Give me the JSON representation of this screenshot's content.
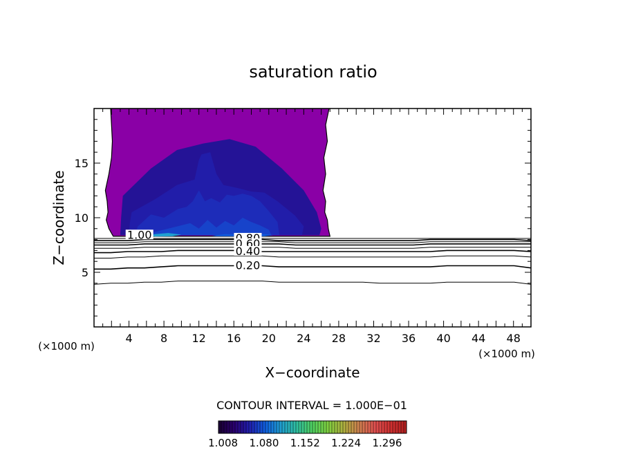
{
  "chart_data": {
    "type": "contour",
    "title": "saturation ratio",
    "xlabel": "X−coordinate",
    "ylabel": "Z−coordinate",
    "x_unit_label": "(×1000 m)",
    "z_unit_label": "(×1000 m)",
    "xlim": [
      0,
      50
    ],
    "ylim": [
      0,
      20
    ],
    "x_ticks": [
      4,
      8,
      12,
      16,
      20,
      24,
      28,
      32,
      36,
      40,
      44,
      48
    ],
    "y_ticks": [
      5,
      10,
      15
    ],
    "contour_interval_text": "CONTOUR INTERVAL = 1.000E−01",
    "contour_lines": [
      {
        "level": 0.1,
        "z": [
          3.9,
          4.0,
          4.0,
          4.1,
          4.1,
          4.2,
          4.2,
          4.2,
          4.2,
          4.2,
          4.2,
          4.1,
          4.1,
          4.1,
          4.1,
          4.1,
          4.1,
          4.0,
          4.0,
          4.0,
          4.0,
          4.1,
          4.1,
          4.1,
          4.1,
          4.1,
          3.9
        ]
      },
      {
        "level": 0.2,
        "z": [
          5.3,
          5.3,
          5.4,
          5.4,
          5.5,
          5.6,
          5.6,
          5.6,
          5.6,
          5.6,
          5.6,
          5.5,
          5.5,
          5.5,
          5.5,
          5.5,
          5.5,
          5.5,
          5.5,
          5.5,
          5.5,
          5.6,
          5.6,
          5.6,
          5.6,
          5.6,
          5.4
        ]
      },
      {
        "level": 0.3,
        "z": [
          6.3,
          6.3,
          6.4,
          6.4,
          6.5,
          6.5,
          6.5,
          6.5,
          6.5,
          6.5,
          6.5,
          6.4,
          6.4,
          6.4,
          6.4,
          6.4,
          6.4,
          6.4,
          6.4,
          6.4,
          6.4,
          6.5,
          6.5,
          6.5,
          6.5,
          6.5,
          6.4
        ]
      },
      {
        "level": 0.4,
        "z": [
          6.8,
          6.8,
          6.9,
          6.9,
          6.9,
          7.0,
          7.0,
          7.0,
          7.0,
          7.0,
          6.9,
          6.9,
          6.9,
          6.9,
          6.9,
          6.9,
          6.9,
          6.9,
          6.9,
          6.9,
          6.9,
          7.0,
          7.0,
          7.0,
          7.0,
          7.0,
          6.9
        ]
      },
      {
        "level": 0.5,
        "z": [
          7.2,
          7.2,
          7.2,
          7.3,
          7.3,
          7.3,
          7.3,
          7.3,
          7.3,
          7.3,
          7.3,
          7.3,
          7.2,
          7.2,
          7.2,
          7.2,
          7.2,
          7.2,
          7.2,
          7.2,
          7.3,
          7.3,
          7.3,
          7.3,
          7.3,
          7.3,
          7.3
        ]
      },
      {
        "level": 0.6,
        "z": [
          7.5,
          7.5,
          7.5,
          7.6,
          7.6,
          7.6,
          7.6,
          7.6,
          7.6,
          7.6,
          7.6,
          7.6,
          7.5,
          7.5,
          7.5,
          7.5,
          7.5,
          7.5,
          7.5,
          7.5,
          7.6,
          7.6,
          7.6,
          7.6,
          7.6,
          7.6,
          7.6
        ]
      },
      {
        "level": 0.7,
        "z": [
          7.7,
          7.7,
          7.7,
          7.8,
          7.8,
          7.8,
          7.8,
          7.8,
          7.8,
          7.8,
          7.8,
          7.8,
          7.7,
          7.7,
          7.7,
          7.7,
          7.7,
          7.7,
          7.7,
          7.7,
          7.8,
          7.8,
          7.8,
          7.8,
          7.8,
          7.8,
          7.8
        ]
      },
      {
        "level": 0.8,
        "z": [
          7.9,
          7.9,
          7.9,
          8.0,
          8.0,
          8.0,
          8.0,
          8.0,
          8.0,
          8.0,
          8.0,
          7.9,
          7.9,
          7.9,
          7.9,
          7.9,
          7.9,
          7.9,
          7.9,
          7.9,
          8.0,
          8.0,
          8.0,
          8.0,
          8.0,
          8.0,
          7.9
        ]
      },
      {
        "level": 0.9,
        "z": [
          8.1,
          8.1,
          8.1,
          8.1,
          8.1,
          8.1,
          8.1,
          8.1,
          8.1,
          8.1,
          8.1,
          8.1,
          8.1,
          8.1,
          8.1,
          8.1,
          8.1,
          8.1,
          8.1,
          8.1,
          8.1,
          8.1,
          8.1,
          8.1,
          8.1,
          8.1,
          8.1
        ]
      }
    ],
    "line_labels": [
      {
        "text": "1.00",
        "x": 5.2,
        "z": 8.4
      },
      {
        "text": "0.80",
        "x": 17.6,
        "z": 8.1
      },
      {
        "text": "0.60",
        "x": 17.6,
        "z": 7.6
      },
      {
        "text": "0.40",
        "x": 17.6,
        "z": 6.9
      },
      {
        "text": "0.20",
        "x": 17.6,
        "z": 5.6
      }
    ],
    "supersaturated_region": {
      "x_left": [
        1.9,
        2.0,
        2.1,
        2.0,
        1.7,
        1.3,
        1.5,
        1.6,
        1.4,
        1.7,
        2.2
      ],
      "x_right": [
        26.9,
        26.5,
        26.7,
        26.3,
        26.5,
        26.2,
        26.5,
        26.4,
        26.7,
        26.8,
        27.0
      ],
      "z": [
        20,
        18.5,
        17,
        15.5,
        14,
        12.5,
        11.5,
        10.5,
        9.8,
        9.0,
        8.3
      ],
      "fills": [
        {
          "level": 1.036,
          "x": [
            1.9,
            26.9,
            26.5,
            26.7,
            26.3,
            26.5,
            26.2,
            26.5,
            26.4,
            26.7,
            26.8,
            27.0,
            2.2,
            1.7,
            1.4,
            1.6,
            1.5,
            1.3,
            1.7,
            2.0,
            2.1,
            2.0
          ],
          "z": [
            20,
            20,
            18.5,
            17,
            15.5,
            14,
            12.5,
            11.5,
            10.5,
            9.8,
            9.0,
            8.3,
            8.3,
            9.0,
            9.8,
            10.5,
            11.5,
            12.5,
            14,
            15.5,
            17,
            18.5
          ]
        },
        {
          "level": 1.044,
          "x": [
            3.3,
            6.5,
            9.5,
            12.5,
            15.5,
            18.5,
            21.5,
            24.0,
            25.5,
            26.0,
            25.8,
            3.0,
            3.1
          ],
          "z": [
            12.0,
            14.5,
            16.2,
            16.8,
            17.2,
            16.5,
            14.5,
            12.5,
            10.5,
            9.0,
            8.4,
            8.4,
            10.0
          ]
        },
        {
          "level": 1.052,
          "x": [
            4.3,
            7.0,
            9.5,
            11.5,
            12.0,
            12.3,
            13.3,
            14.0,
            14.8,
            16.5,
            18.0,
            19.5,
            21.0,
            23.0,
            24.0,
            23.8,
            4.0,
            4.1
          ],
          "z": [
            10.5,
            11.7,
            13.0,
            13.5,
            15.3,
            15.8,
            16.0,
            14.0,
            13.0,
            12.7,
            12.4,
            12.3,
            11.5,
            10.2,
            9.2,
            8.4,
            8.4,
            9.5
          ]
        },
        {
          "level": 1.06,
          "x": [
            5.0,
            6.5,
            8.0,
            9.6,
            10.6,
            11.3,
            12.0,
            12.7,
            13.4,
            14.4,
            15.2,
            16.0,
            17.0,
            18.0,
            19.0,
            20.0,
            21.0,
            21.2,
            4.7
          ],
          "z": [
            9.2,
            10.3,
            10.0,
            10.8,
            11.0,
            11.5,
            12.5,
            11.5,
            11.8,
            11.4,
            12.1,
            12.0,
            12.2,
            12.0,
            11.5,
            10.6,
            9.6,
            8.4,
            8.4
          ]
        },
        {
          "level": 1.07,
          "x": [
            7.0,
            9.5,
            11.0,
            12.0,
            13.0,
            14.0,
            15.0,
            16.0,
            17.0,
            18.0,
            19.0,
            20.0,
            20.3,
            6.5
          ],
          "z": [
            8.7,
            9.2,
            9.5,
            9.0,
            9.8,
            9.1,
            9.7,
            9.3,
            10.0,
            9.6,
            9.3,
            8.9,
            8.4,
            8.4
          ]
        },
        {
          "level": 1.11,
          "x": [
            6.2,
            7.0,
            8.5,
            10.0,
            9.0,
            7.0
          ],
          "z": [
            8.35,
            8.5,
            8.6,
            8.45,
            8.3,
            8.28
          ]
        },
        {
          "level": 1.08,
          "x": [
            13.5,
            15.0,
            16.5,
            16.0,
            14.0
          ],
          "z": [
            8.35,
            8.5,
            8.45,
            8.3,
            8.3
          ]
        },
        {
          "level": 1.08,
          "x": [
            18.0,
            19.5,
            20.5,
            19.5,
            18.2
          ],
          "z": [
            8.35,
            8.5,
            8.4,
            8.3,
            8.3
          ]
        }
      ]
    },
    "colorbar": {
      "min": 1.0,
      "max": 1.33,
      "ticks": [
        1.008,
        1.08,
        1.152,
        1.224,
        1.296
      ],
      "tick_labels": [
        "1.008",
        "1.080",
        "1.152",
        "1.224",
        "1.296"
      ],
      "colors": [
        "#1a0030",
        "#2a0070",
        "#2020b0",
        "#1060e0",
        "#20a0d0",
        "#30c0a0",
        "#50d060",
        "#80d040",
        "#b0b040",
        "#d08050",
        "#e05050",
        "#d03030",
        "#b02020"
      ]
    },
    "colors": {
      "outer_fill": "#8a00a6",
      "axis": "#000000"
    }
  }
}
